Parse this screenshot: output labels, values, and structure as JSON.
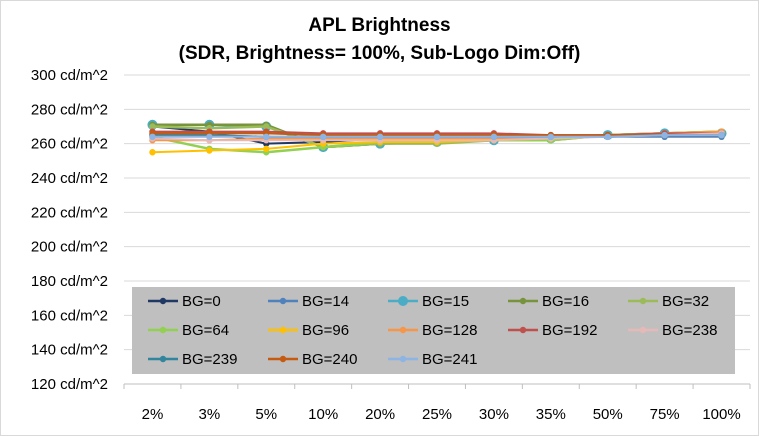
{
  "chart_data": {
    "type": "line",
    "title": "APL Brightness",
    "subtitle": "(SDR, Brightness= 100%, Sub-Logo Dim:Off)",
    "xlabel": "",
    "ylabel": "",
    "categories": [
      "2%",
      "3%",
      "5%",
      "10%",
      "20%",
      "25%",
      "30%",
      "35%",
      "50%",
      "75%",
      "100%"
    ],
    "ylim": [
      120,
      300
    ],
    "yticks": [
      120,
      140,
      160,
      180,
      200,
      220,
      240,
      260,
      280,
      300
    ],
    "ytick_labels": [
      "120 cd/m^2",
      "140 cd/m^2",
      "160 cd/m^2",
      "180 cd/m^2",
      "200 cd/m^2",
      "220 cd/m^2",
      "240 cd/m^2",
      "260 cd/m^2",
      "280 cd/m^2",
      "300 cd/m^2"
    ],
    "grid": true,
    "legend_position": "inside-bottom",
    "series": [
      {
        "name": "BG=0",
        "color": "#1f3864",
        "values": [
          270,
          267,
          260,
          261,
          263,
          264,
          263,
          264,
          264,
          265,
          265
        ]
      },
      {
        "name": "BG=14",
        "color": "#4f81bd",
        "values": [
          265,
          265,
          264,
          263,
          264,
          264,
          264,
          264,
          264,
          264,
          264
        ]
      },
      {
        "name": "BG=15",
        "color": "#4bacc6",
        "values": [
          271,
          271,
          270,
          258,
          260,
          261,
          262,
          263,
          265,
          266,
          266
        ]
      },
      {
        "name": "BG=16",
        "color": "#77933c",
        "values": [
          271,
          271,
          271,
          258,
          260,
          261,
          262,
          263,
          265,
          266,
          267
        ]
      },
      {
        "name": "BG=32",
        "color": "#9bbb59",
        "values": [
          270,
          269,
          270,
          258,
          260,
          260,
          262,
          262,
          265,
          266,
          267
        ]
      },
      {
        "name": "BG=64",
        "color": "#92d050",
        "values": [
          264,
          257,
          255,
          258,
          261,
          262,
          262,
          262,
          265,
          266,
          267
        ]
      },
      {
        "name": "BG=96",
        "color": "#ffc000",
        "values": [
          255,
          256,
          257,
          260,
          261,
          261,
          262,
          263,
          265,
          266,
          267
        ]
      },
      {
        "name": "BG=128",
        "color": "#f79646",
        "values": [
          262,
          262,
          263,
          263,
          263,
          263,
          263,
          264,
          265,
          266,
          267
        ]
      },
      {
        "name": "BG=192",
        "color": "#c0504d",
        "values": [
          267,
          267,
          267,
          266,
          266,
          266,
          266,
          265,
          265,
          266,
          266
        ]
      },
      {
        "name": "BG=238",
        "color": "#e6b9b8",
        "values": [
          263,
          262,
          262,
          262,
          262,
          262,
          262,
          263,
          264,
          265,
          266
        ]
      },
      {
        "name": "BG=239",
        "color": "#31859c",
        "values": [
          265,
          265,
          264,
          264,
          264,
          264,
          264,
          264,
          265,
          265,
          265
        ]
      },
      {
        "name": "BG=240",
        "color": "#c55a11",
        "values": [
          266,
          266,
          266,
          265,
          265,
          265,
          265,
          265,
          265,
          265,
          265
        ]
      },
      {
        "name": "BG=241",
        "color": "#8eb4e3",
        "values": [
          264,
          264,
          264,
          264,
          264,
          264,
          264,
          264,
          264,
          265,
          265
        ]
      }
    ]
  }
}
